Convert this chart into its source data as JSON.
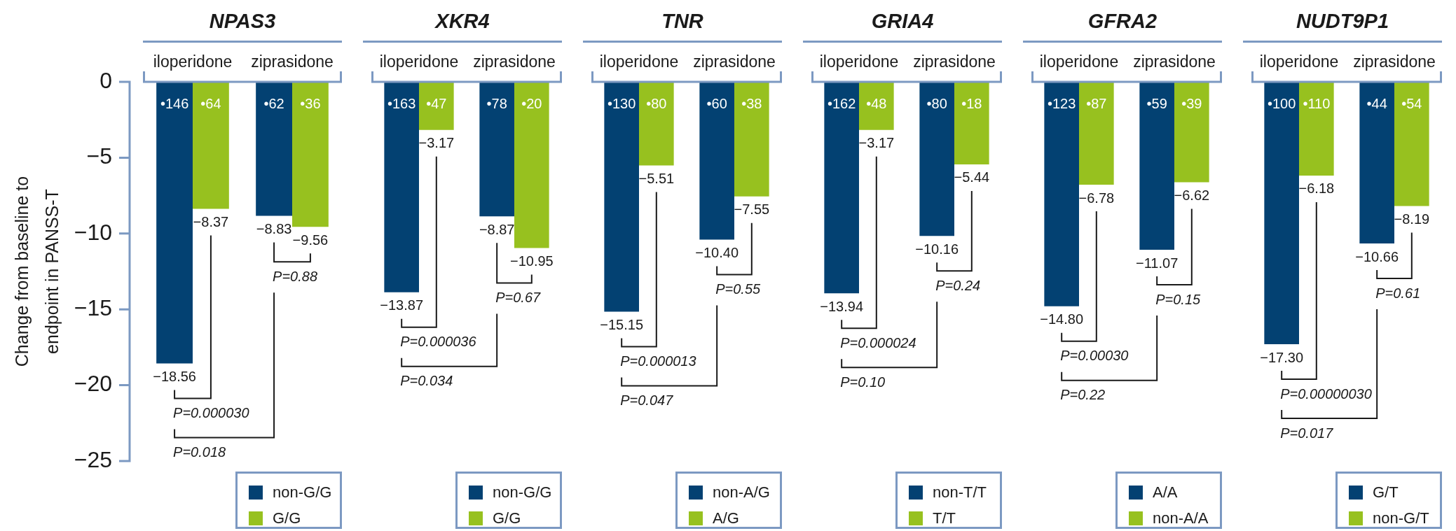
{
  "chart_data": [
    {
      "type": "bar",
      "title": "NPAS3",
      "ylabel": "Change from baseline to endpoint in PANSS-T",
      "categories": [
        "iloperidone",
        "ziprasidone"
      ],
      "series": [
        {
          "name": "non-G/G",
          "color": "#034172",
          "values": [
            -18.56,
            -8.83
          ],
          "value_labels": [
            "−18.56",
            "−8.83"
          ]
        },
        {
          "name": "G/G",
          "color": "#97c11f",
          "values": [
            -8.37,
            -9.56
          ],
          "value_labels": [
            "−8.37",
            "−9.56"
          ]
        }
      ],
      "ylim": [
        -25,
        0
      ],
      "yticks": [
        -25,
        -20,
        -15,
        -10,
        -5,
        0
      ],
      "legend": "bottom right",
      "annotations": [
        "•146",
        "•64",
        "•62",
        "•36",
        "P=0.000030",
        "P=0.88",
        "P=0.018"
      ]
    },
    {
      "type": "bar",
      "title": "XKR4",
      "categories": [
        "iloperidone",
        "ziprasidone"
      ],
      "series": [
        {
          "name": "non-G/G",
          "color": "#034172",
          "values": [
            -13.87,
            -8.87
          ],
          "value_labels": [
            "−13.87",
            "−8.87"
          ]
        },
        {
          "name": "G/G",
          "color": "#97c11f",
          "values": [
            -3.17,
            -10.95
          ],
          "value_labels": [
            "−3.17",
            "−10.95"
          ]
        }
      ],
      "ylim": [
        -25,
        0
      ],
      "yticks": [
        -25,
        -20,
        -15,
        -10,
        -5,
        0
      ],
      "tick_labels": "x",
      "legend": "bottom right",
      "annotations": [
        "•163",
        "•47",
        "•78",
        "•20",
        "P=0.000036",
        "P=0.67",
        "P=0.034"
      ]
    },
    {
      "type": "bar",
      "title": "TNR",
      "categories": [
        "iloperidone",
        "ziprasidone"
      ],
      "series": [
        {
          "name": "non-A/G",
          "color": "#034172",
          "values": [
            -15.15,
            -10.4
          ],
          "value_labels": [
            "−15.15",
            "−10.40"
          ]
        },
        {
          "name": "A/G",
          "color": "#97c11f",
          "values": [
            -5.51,
            -7.55
          ],
          "value_labels": [
            "−5.51",
            "−7.55"
          ]
        }
      ],
      "ylim": [
        -25,
        0
      ],
      "yticks": [
        -25,
        -20,
        -15,
        -10,
        -5,
        0
      ],
      "tick_labels": "x",
      "legend": "bottom right",
      "annotations": [
        "•130",
        "•80",
        "•60",
        "•38",
        "P=0.000013",
        "P=0.55",
        "P=0.047"
      ]
    },
    {
      "type": "bar",
      "title": "GRIA4",
      "categories": [
        "iloperidone",
        "ziprasidone"
      ],
      "series": [
        {
          "name": "non-T/T",
          "color": "#034172",
          "values": [
            -13.94,
            -10.16
          ],
          "value_labels": [
            "−13.94",
            "−10.16"
          ]
        },
        {
          "name": "T/T",
          "color": "#97c11f",
          "values": [
            -3.17,
            -5.44
          ],
          "value_labels": [
            "−3.17",
            "−5.44"
          ]
        }
      ],
      "ylim": [
        -25,
        0
      ],
      "yticks": [
        -25,
        -20,
        -15,
        -10,
        -5,
        0
      ],
      "tick_labels": "x",
      "legend": "bottom right",
      "annotations": [
        "•162",
        "•48",
        "•80",
        "•18",
        "P=0.000024",
        "P=0.24",
        "P=0.10"
      ]
    },
    {
      "type": "bar",
      "title": "GFRA2",
      "categories": [
        "iloperidone",
        "ziprasidone"
      ],
      "series": [
        {
          "name": "A/A",
          "color": "#034172",
          "values": [
            -14.8,
            -11.07
          ],
          "value_labels": [
            "−14.80",
            "−11.07"
          ]
        },
        {
          "name": "non-A/A",
          "color": "#97c11f",
          "values": [
            -6.78,
            -6.62
          ],
          "value_labels": [
            "−6.78",
            "−6.62"
          ]
        }
      ],
      "ylim": [
        -25,
        0
      ],
      "yticks": [
        -25,
        -20,
        -15,
        -10,
        -5,
        0
      ],
      "tick_labels": "x",
      "legend": "bottom right",
      "annotations": [
        "•123",
        "•87",
        "•59",
        "•39",
        "P=0.00030",
        "P=0.15",
        "P=0.22"
      ]
    },
    {
      "type": "bar",
      "title": "NUDT9P1",
      "categories": [
        "iloperidone",
        "ziprasidone"
      ],
      "series": [
        {
          "name": "G/T",
          "color": "#034172",
          "values": [
            -17.3,
            -10.66
          ],
          "value_labels": [
            "−17.30",
            "−10.66"
          ]
        },
        {
          "name": "non-G/T",
          "color": "#97c11f",
          "values": [
            -6.18,
            -8.19
          ],
          "value_labels": [
            "−6.18",
            "−8.19"
          ]
        }
      ],
      "ylim": [
        -25,
        0
      ],
      "yticks": [
        -25,
        -20,
        -15,
        -10,
        -5,
        0
      ],
      "tick_labels": "x",
      "legend": "bottom right",
      "annotations": [
        "•100",
        "•110",
        "•44",
        "•54",
        "P=0.00000030",
        "P=0.61",
        "P=0.017"
      ]
    }
  ]
}
